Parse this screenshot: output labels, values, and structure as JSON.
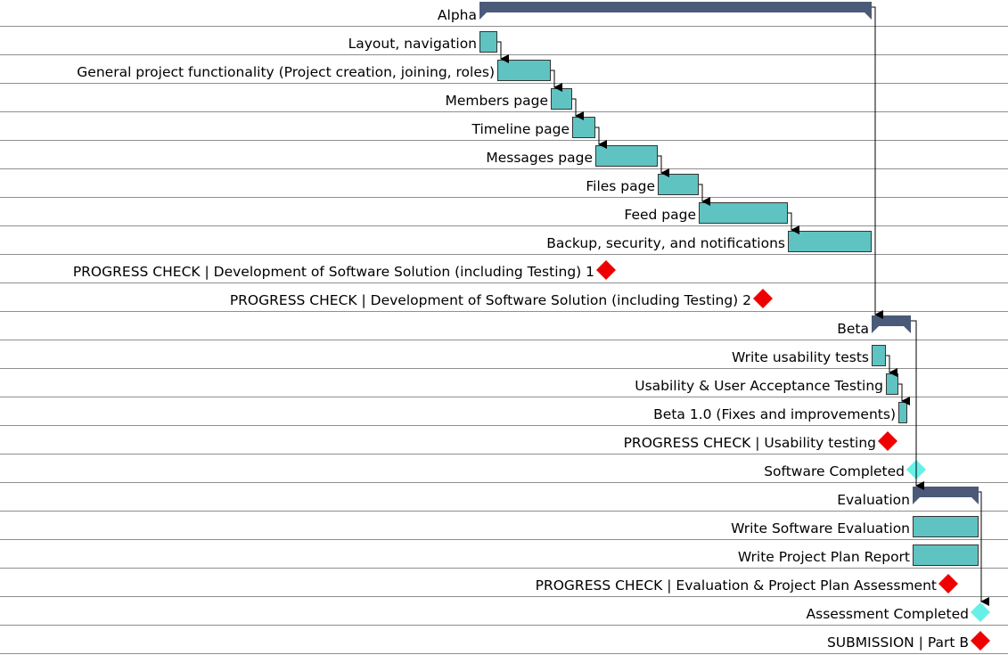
{
  "chart_data": {
    "type": "gantt",
    "colors": {
      "summary": "#4a5a78",
      "task": "#5fc3c2",
      "task_border": "#333333",
      "progress_milestone": "#ee0000",
      "completion_milestone": "#66f0e8",
      "row_line": "#8f8f8f",
      "arrow": "#000000"
    },
    "tasks": [
      {
        "name": "Alpha",
        "kind": "summary",
        "start": 0,
        "end": 55
      },
      {
        "name": "Layout, navigation",
        "kind": "task",
        "start": 0,
        "end": 2.5
      },
      {
        "name": "General project functionality (Project creation, joining, roles)",
        "kind": "task",
        "start": 2.5,
        "end": 10
      },
      {
        "name": "Members page",
        "kind": "task",
        "start": 10,
        "end": 13
      },
      {
        "name": "Timeline page",
        "kind": "task",
        "start": 13,
        "end": 16.25
      },
      {
        "name": "Messages page",
        "kind": "task",
        "start": 16.25,
        "end": 25
      },
      {
        "name": "Files page",
        "kind": "task",
        "start": 25,
        "end": 30.75
      },
      {
        "name": "Feed page",
        "kind": "task",
        "start": 30.75,
        "end": 43.25
      },
      {
        "name": "Backup, security, and notifications",
        "kind": "task",
        "start": 43.25,
        "end": 55
      },
      {
        "name": "PROGRESS CHECK | Development of Software Solution (including Testing) 1",
        "kind": "progress_milestone",
        "at": 17.75
      },
      {
        "name": "PROGRESS CHECK | Development of Software Solution (including Testing) 2",
        "kind": "progress_milestone",
        "at": 39.75
      },
      {
        "name": "Beta",
        "kind": "summary",
        "start": 55,
        "end": 60.5
      },
      {
        "name": "Write usability tests",
        "kind": "task",
        "start": 55,
        "end": 57
      },
      {
        "name": "Usability & User Acceptance Testing",
        "kind": "task",
        "start": 57,
        "end": 58.75
      },
      {
        "name": "Beta 1.0 (Fixes and improvements)",
        "kind": "task",
        "start": 58.75,
        "end": 60
      },
      {
        "name": "PROGRESS CHECK | Usability testing",
        "kind": "progress_milestone",
        "at": 57.25
      },
      {
        "name": "Software Completed",
        "kind": "completion_milestone",
        "at": 61.25
      },
      {
        "name": "Evaluation",
        "kind": "summary",
        "start": 60.75,
        "end": 70
      },
      {
        "name": "Write Software Evaluation",
        "kind": "task",
        "start": 60.75,
        "end": 70
      },
      {
        "name": "Write Project Plan Report",
        "kind": "task",
        "start": 60.75,
        "end": 70
      },
      {
        "name": "PROGRESS CHECK | Evaluation & Project Plan Assessment",
        "kind": "progress_milestone",
        "at": 65.75
      },
      {
        "name": "Assessment Completed",
        "kind": "completion_milestone",
        "at": 70.25
      },
      {
        "name": "SUBMISSION | Part B",
        "kind": "progress_milestone",
        "at": 70.25
      }
    ],
    "dependencies": [
      {
        "from": 0,
        "to": 11
      },
      {
        "from": 1,
        "to": 2
      },
      {
        "from": 2,
        "to": 3
      },
      {
        "from": 3,
        "to": 4
      },
      {
        "from": 4,
        "to": 5
      },
      {
        "from": 5,
        "to": 6
      },
      {
        "from": 6,
        "to": 7
      },
      {
        "from": 7,
        "to": 8
      },
      {
        "from": 11,
        "to": 17
      },
      {
        "from": 12,
        "to": 13
      },
      {
        "from": 13,
        "to": 14
      },
      {
        "from": 17,
        "to": 21
      }
    ]
  }
}
